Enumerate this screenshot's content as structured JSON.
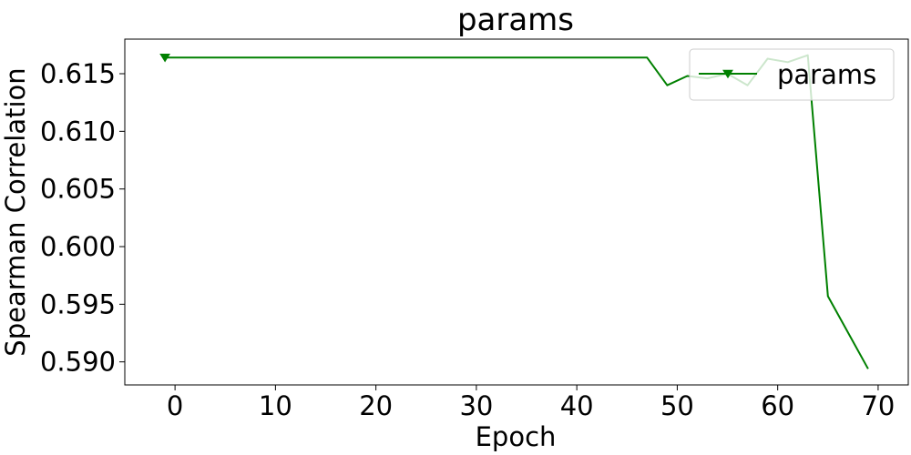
{
  "chart_data": {
    "type": "line",
    "title": "params",
    "xlabel": "Epoch",
    "ylabel": "Spearman Correlation",
    "xlim": [
      -5,
      73
    ],
    "ylim": [
      0.588,
      0.618
    ],
    "xticks": [
      0,
      10,
      20,
      30,
      40,
      50,
      60,
      70
    ],
    "yticks": [
      0.59,
      0.595,
      0.6,
      0.605,
      0.61,
      0.615
    ],
    "ytick_labels": [
      "0.590",
      "0.595",
      "0.600",
      "0.605",
      "0.610",
      "0.615"
    ],
    "grid": false,
    "legend_position": "top-right",
    "series": [
      {
        "name": "params",
        "color": "#008000",
        "marker": "triangle-down",
        "x": [
          -1,
          47,
          49,
          51,
          53,
          55,
          57,
          59,
          61,
          63,
          65,
          69
        ],
        "y": [
          0.6164,
          0.6164,
          0.614,
          0.6148,
          0.6146,
          0.615,
          0.614,
          0.6163,
          0.616,
          0.6166,
          0.5957,
          0.5894
        ]
      }
    ]
  }
}
